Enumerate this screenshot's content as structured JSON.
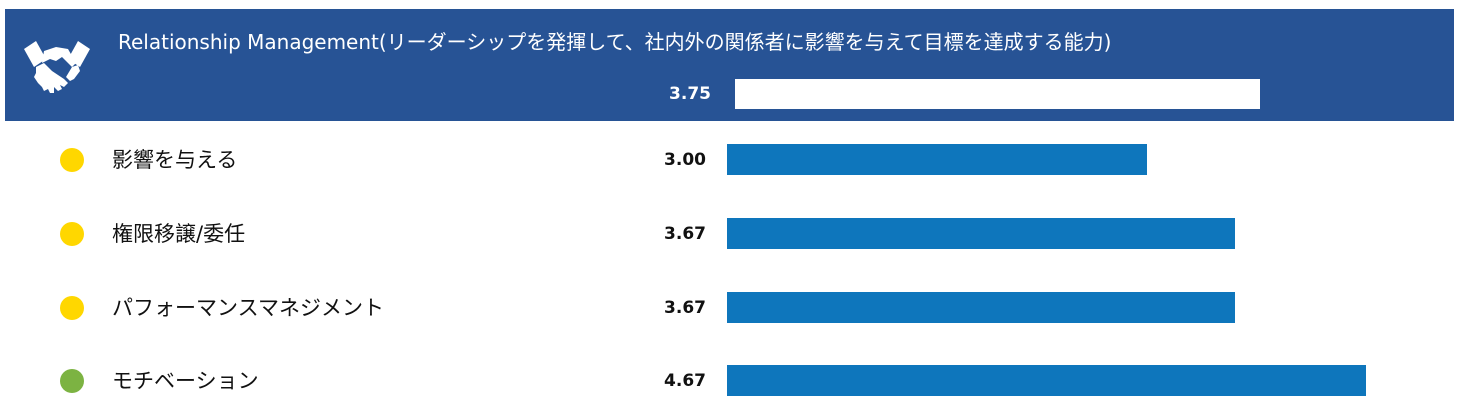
{
  "header": {
    "title": "Relationship Management(リーダーシップを発揮して、社内外の関係者に影響を与えて目標を達成する能力)",
    "icon": "handshake-icon",
    "value_label": "3.75",
    "bg_color": "#275395",
    "bar_color": "#ffffff"
  },
  "scale_max": 5,
  "chart_data": {
    "type": "bar",
    "orientation": "horizontal",
    "title": "Relationship Management(リーダーシップを発揮して、社内外の関係者に影響を与えて目標を達成する能力)",
    "summary_value": 3.75,
    "categories": [
      "影響を与える",
      "権限移譲/委任",
      "パフォーマンスマネジメント",
      "モチベーション"
    ],
    "values": [
      3.0,
      3.67,
      3.67,
      4.67
    ],
    "value_labels": [
      "3.00",
      "3.67",
      "3.67",
      "4.67"
    ],
    "status_colors": [
      "#FFD700",
      "#FFD700",
      "#FFD700",
      "#7CB342"
    ],
    "bar_color": "#0E76BC",
    "xlim": [
      0,
      5
    ],
    "grid": false,
    "legend": "none"
  }
}
